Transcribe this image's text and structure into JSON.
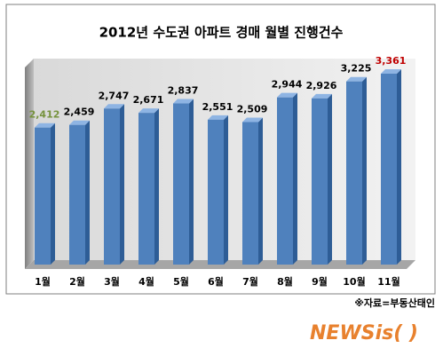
{
  "chart_data": {
    "type": "bar",
    "title": "2012년 수도권 아파트 경매 월별 진행건수",
    "categories": [
      "1월",
      "2월",
      "3월",
      "4월",
      "5월",
      "6월",
      "7월",
      "8월",
      "9월",
      "10월",
      "11월"
    ],
    "values": [
      2412,
      2459,
      2747,
      2671,
      2837,
      2551,
      2509,
      2944,
      2926,
      3225,
      3361
    ],
    "value_labels": [
      "2,412",
      "2,459",
      "2,747",
      "2,671",
      "2,837",
      "2,551",
      "2,509",
      "2,944",
      "2,926",
      "3,225",
      "3,361"
    ],
    "value_label_colors": [
      "#76923c",
      "#000000",
      "#000000",
      "#000000",
      "#000000",
      "#000000",
      "#000000",
      "#000000",
      "#000000",
      "#000000",
      "#c00000"
    ],
    "color": "#4f81bd",
    "source": "※자료=부동산태인",
    "watermark": "NEWSis( )"
  }
}
